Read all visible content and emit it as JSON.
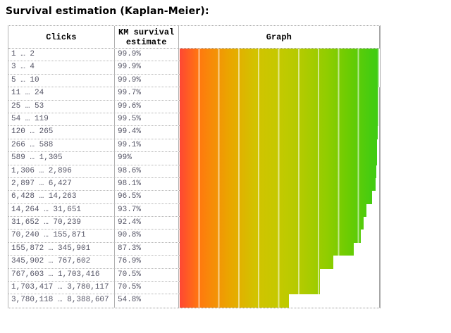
{
  "title": "Survival estimation (Kaplan-Meier):",
  "table": {
    "headers": [
      "Clicks",
      "KM survival estimate",
      "Graph"
    ]
  },
  "rows": [
    {
      "clicks": "1 … 2",
      "estimate": "99.9%"
    },
    {
      "clicks": "3 … 4",
      "estimate": "99.9%"
    },
    {
      "clicks": "5 … 10",
      "estimate": "99.9%"
    },
    {
      "clicks": "11 … 24",
      "estimate": "99.7%"
    },
    {
      "clicks": "25 … 53",
      "estimate": "99.6%"
    },
    {
      "clicks": "54 … 119",
      "estimate": "99.5%"
    },
    {
      "clicks": "120 … 265",
      "estimate": "99.4%"
    },
    {
      "clicks": "266 … 588",
      "estimate": "99.1%"
    },
    {
      "clicks": "589 … 1,305",
      "estimate": "99%"
    },
    {
      "clicks": "1,306 … 2,896",
      "estimate": "98.6%"
    },
    {
      "clicks": "2,897 … 6,427",
      "estimate": "98.1%"
    },
    {
      "clicks": "6,428 … 14,263",
      "estimate": "96.5%"
    },
    {
      "clicks": "14,264 … 31,651",
      "estimate": "93.7%"
    },
    {
      "clicks": "31,652 … 70,239",
      "estimate": "92.4%"
    },
    {
      "clicks": "70,240 … 155,871",
      "estimate": "90.8%"
    },
    {
      "clicks": "155,872 … 345,901",
      "estimate": "87.3%"
    },
    {
      "clicks": "345,902 … 767,602",
      "estimate": "76.9%"
    },
    {
      "clicks": "767,603 … 1,703,416",
      "estimate": "70.5%"
    },
    {
      "clicks": "1,703,417 … 3,780,117",
      "estimate": "70.5%"
    },
    {
      "clicks": "3,780,118 … 8,388,607",
      "estimate": "54.8%"
    }
  ],
  "chart_data": {
    "type": "bar",
    "orientation": "horizontal",
    "title": "Survival estimation (Kaplan-Meier)",
    "categories": [
      "1 … 2",
      "3 … 4",
      "5 … 10",
      "11 … 24",
      "25 … 53",
      "54 … 119",
      "120 … 265",
      "266 … 588",
      "589 … 1,305",
      "1,306 … 2,896",
      "2,897 … 6,427",
      "6,428 … 14,263",
      "14,264 … 31,651",
      "31,652 … 70,239",
      "70,240 … 155,871",
      "155,872 … 345,901",
      "345,902 … 767,602",
      "767,603 … 1,703,416",
      "1,703,417 … 3,780,117",
      "3,780,118 … 8,388,607"
    ],
    "values": [
      99.9,
      99.9,
      99.9,
      99.7,
      99.6,
      99.5,
      99.4,
      99.1,
      99,
      98.6,
      98.1,
      96.5,
      93.7,
      92.4,
      90.8,
      87.3,
      76.9,
      70.5,
      70.5,
      54.8
    ],
    "unit": "%",
    "xlabel": "Clicks",
    "ylabel": "KM survival estimate",
    "xlim": [
      0,
      100
    ],
    "grid": false,
    "legend": false,
    "gradient_colors": [
      "#ff4733",
      "#ff7a0e",
      "#eaa600",
      "#c4c900",
      "#90cd00",
      "#3fcc14"
    ],
    "segment_separator_color": "#ffffff",
    "segments": 10
  },
  "colors": {
    "title_text": "#000000",
    "header_text": "#000000",
    "cell_text": "#555566",
    "border_solid": "#b0b0b0",
    "border_dotted": "#999999",
    "background": "#ffffff"
  }
}
